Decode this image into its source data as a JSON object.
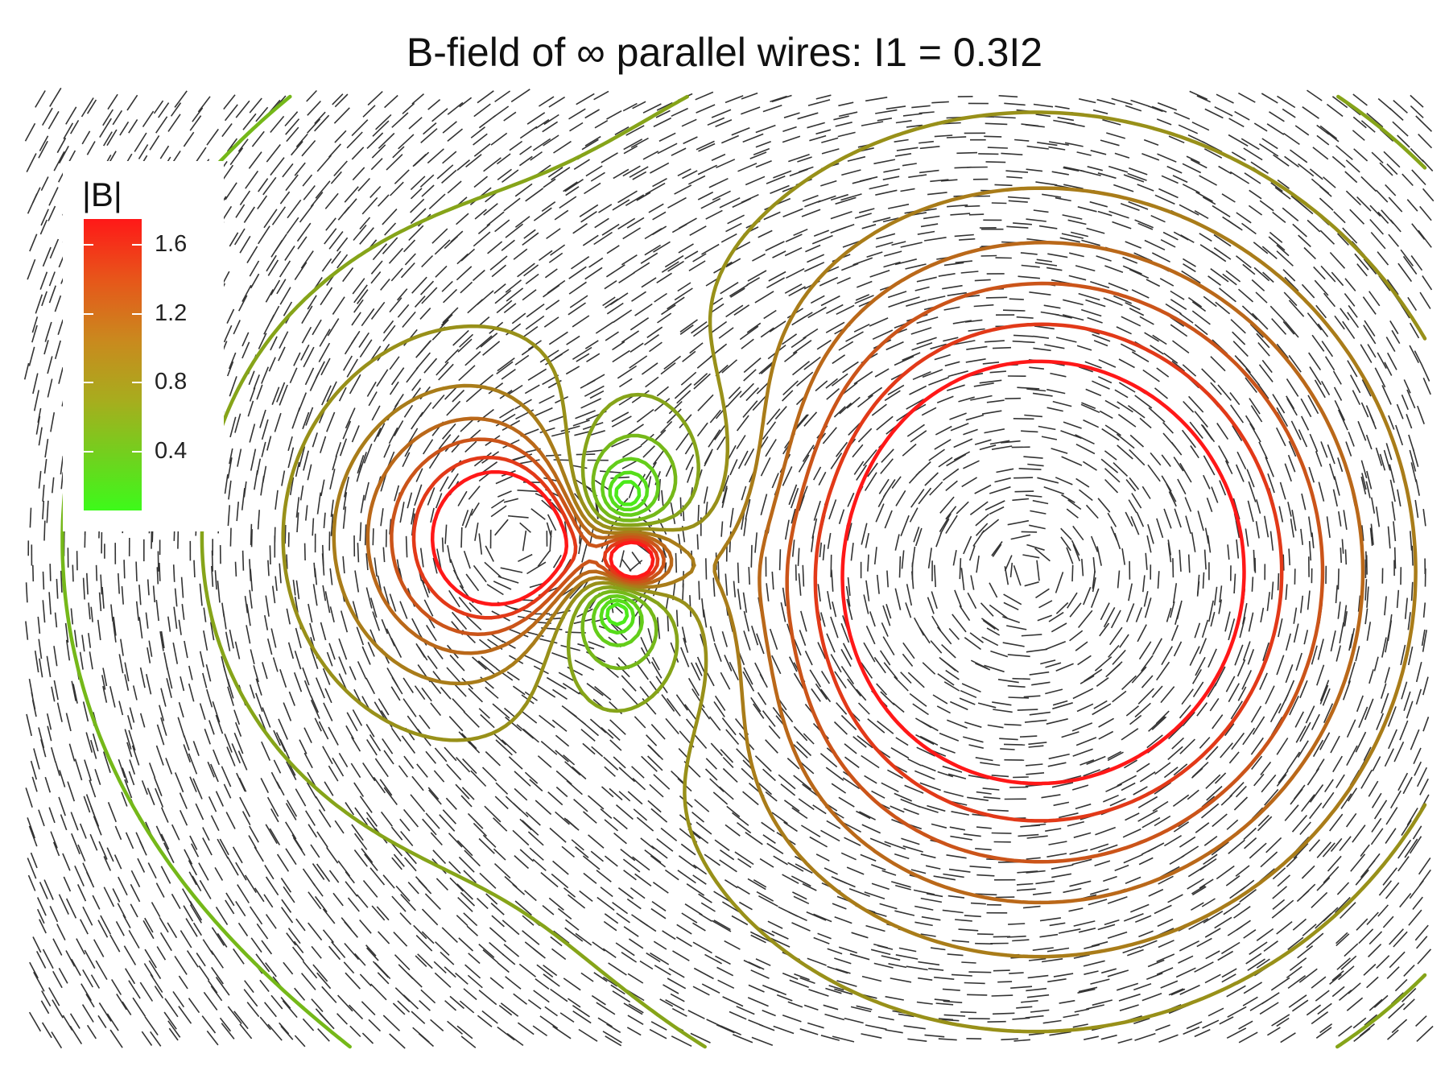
{
  "chart_data": {
    "type": "contour",
    "title": "B-field of ∞ parallel wires: I1 = 0.3I2",
    "legend": {
      "title": "|B|",
      "placement": "top-left",
      "ticks": [
        "1.6",
        "1.2",
        "0.8",
        "0.4"
      ],
      "tick_values": [
        1.6,
        1.2,
        0.8,
        0.4
      ],
      "range": [
        0.06,
        1.75
      ],
      "colors": [
        "#3dfa1a",
        "#ff1818"
      ]
    },
    "wires": [
      {
        "x": -2.0,
        "y": 0.3,
        "current": 1.0
      },
      {
        "x": -0.9,
        "y": 0.1,
        "current": -0.3
      },
      {
        "x": 2.8,
        "y": 0.0,
        "current": 3.333
      }
    ],
    "domain": {
      "x": [
        -6.5,
        6.5
      ],
      "y": [
        -4.4,
        4.4
      ]
    },
    "contour_levels": [
      0.18,
      0.28,
      0.4,
      0.55,
      0.7,
      0.85,
      1.0,
      1.15,
      1.3,
      1.5,
      1.75
    ],
    "grid": false
  }
}
